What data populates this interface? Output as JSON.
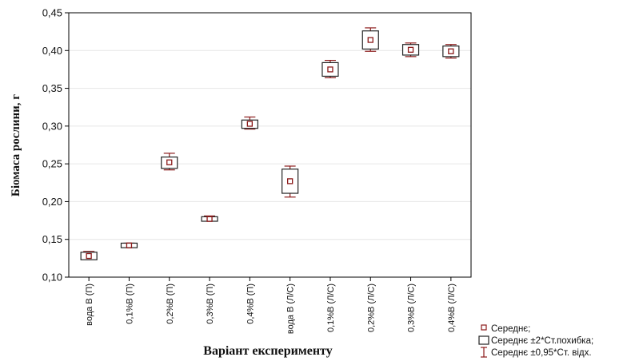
{
  "chart_data": {
    "type": "box",
    "ylabel": "Біомаса рослини, г",
    "xlabel": "Варіант експерименту",
    "ylim": [
      0.1,
      0.45
    ],
    "yticks": [
      "0,10",
      "0,15",
      "0,20",
      "0,25",
      "0,30",
      "0,35",
      "0,40",
      "0,45"
    ],
    "grid": "horizontal",
    "categories": [
      "вода В (П)",
      "0,1%В (П)",
      "0,2%В (П)",
      "0,3%В (П)",
      "0,4%В (П)",
      "вода В (Л/С)",
      "0,1%В (Л/С)",
      "0,2%В (Л/С)",
      "0,3%В (Л/С)",
      "0,4%В (Л/С)"
    ],
    "mean": [
      0.128,
      0.142,
      0.252,
      0.177,
      0.303,
      0.227,
      0.375,
      0.414,
      0.401,
      0.399
    ],
    "box_low": [
      0.123,
      0.139,
      0.244,
      0.174,
      0.297,
      0.211,
      0.366,
      0.402,
      0.394,
      0.392
    ],
    "box_high": [
      0.133,
      0.145,
      0.259,
      0.18,
      0.308,
      0.243,
      0.384,
      0.426,
      0.408,
      0.406
    ],
    "whisker_low": [
      0.125,
      0.14,
      0.242,
      0.175,
      0.296,
      0.206,
      0.364,
      0.399,
      0.392,
      0.39
    ],
    "whisker_high": [
      0.134,
      0.145,
      0.264,
      0.181,
      0.312,
      0.247,
      0.387,
      0.43,
      0.41,
      0.408
    ],
    "legend": {
      "position": "bottom-right",
      "items": [
        "Середнє;",
        "Середнє ±2*Ст.похибка;",
        "Середнє ±0,95*Ст. відх."
      ]
    },
    "colors": {
      "marker": "#8b1a1a",
      "box": "#222222",
      "whisker": "#8b1a1a",
      "grid": "#e6e6e6"
    }
  }
}
